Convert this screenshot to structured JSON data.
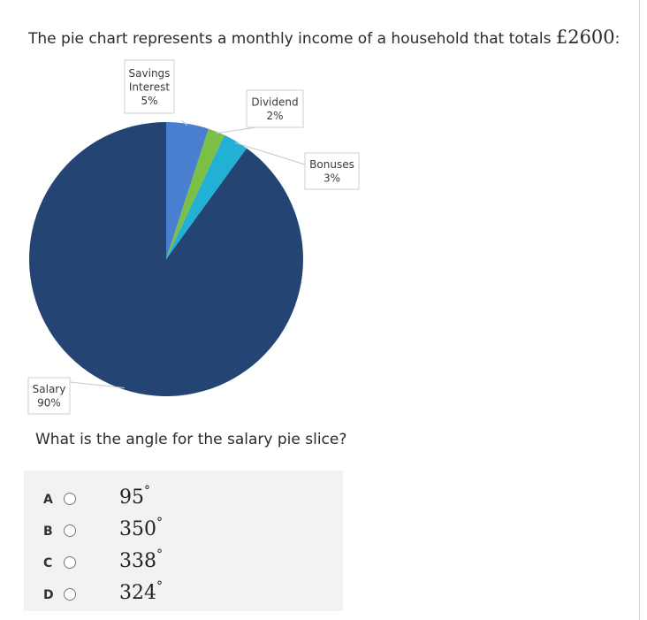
{
  "question": {
    "text": "The pie chart represents a monthly income of a household that totals ",
    "amount": "£2600",
    "suffix": ":"
  },
  "sub_question": "What is the angle for the salary pie slice?",
  "options": [
    {
      "letter": "A",
      "value": "95",
      "unit": "°"
    },
    {
      "letter": "B",
      "value": "350",
      "unit": "°"
    },
    {
      "letter": "C",
      "value": "338",
      "unit": "°"
    },
    {
      "letter": "D",
      "value": "324",
      "unit": "°"
    }
  ],
  "chart_data": {
    "type": "pie",
    "categories": [
      "Savings Interest",
      "Dividend",
      "Bonuses",
      "Salary"
    ],
    "values": [
      5,
      2,
      3,
      90
    ],
    "labels": [
      {
        "name_lines": [
          "Savings",
          "Interest"
        ],
        "value_text": "5%"
      },
      {
        "name_lines": [
          "Dividend"
        ],
        "value_text": "2%"
      },
      {
        "name_lines": [
          "Bonuses"
        ],
        "value_text": "3%"
      },
      {
        "name_lines": [
          "Salary"
        ],
        "value_text": "90%"
      }
    ],
    "colors": [
      "#4a7fcf",
      "#7cbf45",
      "#22b0d4",
      "#244573"
    ],
    "title": "",
    "legend": "none"
  }
}
